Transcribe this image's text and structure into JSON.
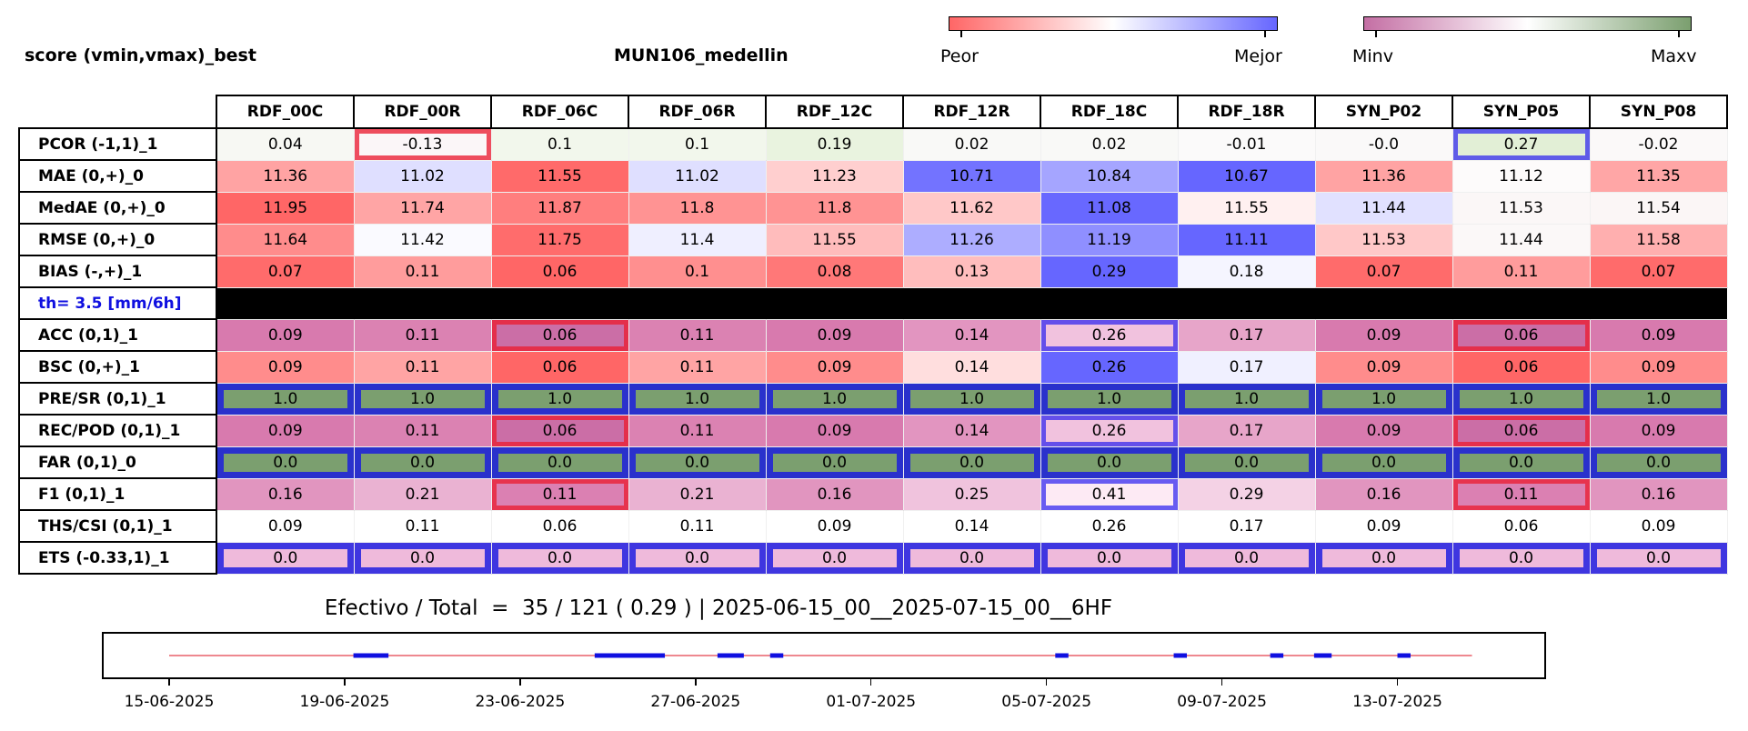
{
  "header": {
    "left_title": "score (vmin,vmax)_best",
    "center_title": "MUN106_medellin"
  },
  "colorbars": {
    "primary": {
      "low_label": "Peor",
      "high_label": "Mejor",
      "colors": [
        "#ff6666",
        "#ffffff",
        "#6666ff"
      ]
    },
    "secondary": {
      "low_label": "Minv",
      "high_label": "Maxv",
      "colors": [
        "#c46fa4",
        "#ffffff",
        "#7b9f6f"
      ]
    }
  },
  "chart_data": {
    "type": "heatmap",
    "columns": [
      "RDF_00C",
      "RDF_00R",
      "RDF_06C",
      "RDF_06R",
      "RDF_12C",
      "RDF_12R",
      "RDF_18C",
      "RDF_18R",
      "SYN_P02",
      "SYN_P05",
      "SYN_P08"
    ],
    "rows": [
      {
        "label": "PCOR (-1,1)_1",
        "values": [
          "0.04",
          "-0.13",
          "0.1",
          "0.1",
          "0.19",
          "0.02",
          "0.02",
          "-0.01",
          "-0.0",
          "0.27",
          "-0.02"
        ],
        "colors": [
          "#f7f8f3",
          "#fbf6f8",
          "#f2f7ec",
          "#f2f7ec",
          "#e9f3df",
          "#f9f9f7",
          "#f9f9f7",
          "#fbfafa",
          "#faf9f9",
          "#e2efd6",
          "#fbf9f9"
        ],
        "highlights": [
          "",
          "red",
          "",
          "",
          "",
          "",
          "",
          "",
          "",
          "blue",
          ""
        ]
      },
      {
        "label": "MAE (0,+)_0",
        "values": [
          "11.36",
          "11.02",
          "11.55",
          "11.02",
          "11.23",
          "10.71",
          "10.84",
          "10.67",
          "11.36",
          "11.12",
          "11.35"
        ],
        "colors": [
          "#ffa3a3",
          "#dfdfff",
          "#ff6a6a",
          "#dfdfff",
          "#ffcfcf",
          "#7373ff",
          "#a5a5ff",
          "#6666ff",
          "#ffa3a3",
          "#fdfbfb",
          "#ffa6a6"
        ],
        "highlights": [
          "",
          "",
          "",
          "",
          "",
          "",
          "",
          "",
          "",
          "",
          ""
        ]
      },
      {
        "label": "MedAE (0,+)_0",
        "values": [
          "11.95",
          "11.74",
          "11.87",
          "11.8",
          "11.8",
          "11.62",
          "11.08",
          "11.55",
          "11.44",
          "11.53",
          "11.54"
        ],
        "colors": [
          "#ff6666",
          "#ffa5a5",
          "#ff7e7e",
          "#ff9393",
          "#ff9393",
          "#ffc8c8",
          "#6868ff",
          "#fff0f0",
          "#e1e1ff",
          "#fbf7f7",
          "#fbf6f6"
        ],
        "highlights": [
          "",
          "",
          "",
          "",
          "",
          "",
          "",
          "",
          "",
          "",
          ""
        ]
      },
      {
        "label": "RMSE (0,+)_0",
        "values": [
          "11.64",
          "11.42",
          "11.75",
          "11.4",
          "11.55",
          "11.26",
          "11.19",
          "11.11",
          "11.53",
          "11.44",
          "11.58"
        ],
        "colors": [
          "#ff8c8c",
          "#fafaff",
          "#ff6c6c",
          "#efefff",
          "#ffbcbc",
          "#adadff",
          "#8f8fff",
          "#6666ff",
          "#ffc8c8",
          "#fbf8f8",
          "#ffafaf"
        ],
        "highlights": [
          "",
          "",
          "",
          "",
          "",
          "",
          "",
          "",
          "",
          "",
          ""
        ]
      },
      {
        "label": "BIAS (-,+)_1",
        "values": [
          "0.07",
          "0.11",
          "0.06",
          "0.1",
          "0.08",
          "0.13",
          "0.29",
          "0.18",
          "0.07",
          "0.11",
          "0.07"
        ],
        "colors": [
          "#ff6b6b",
          "#ff9c9c",
          "#ff6666",
          "#ff8f8f",
          "#ff7878",
          "#ffbdbd",
          "#6666ff",
          "#f5f5ff",
          "#ff6b6b",
          "#ff9c9c",
          "#ff6b6b"
        ],
        "highlights": [
          "",
          "",
          "",
          "",
          "",
          "",
          "",
          "",
          "",
          "",
          ""
        ]
      },
      {
        "label": "th= 3.5 [mm/6h]",
        "separator": true
      },
      {
        "label": "ACC (0,1)_1",
        "values": [
          "0.09",
          "0.11",
          "0.06",
          "0.11",
          "0.09",
          "0.14",
          "0.26",
          "0.17",
          "0.09",
          "0.06",
          "0.09"
        ],
        "colors": [
          "#d87aae",
          "#db82b2",
          "#cb6ea6",
          "#db82b2",
          "#d87aae",
          "#e295c0",
          "#f1c2de",
          "#e7a5c9",
          "#d87aae",
          "#cb6ea6",
          "#d87aae"
        ],
        "highlights": [
          "",
          "",
          "red",
          "",
          "",
          "",
          "blue",
          "",
          "",
          "red",
          ""
        ]
      },
      {
        "label": "BSC (0,+)_1",
        "values": [
          "0.09",
          "0.11",
          "0.06",
          "0.11",
          "0.09",
          "0.14",
          "0.26",
          "0.17",
          "0.09",
          "0.06",
          "0.09"
        ],
        "colors": [
          "#ff8c8c",
          "#ffa4a4",
          "#ff6666",
          "#ffa4a4",
          "#ff8c8c",
          "#ffdede",
          "#6666ff",
          "#f0f0ff",
          "#ff8c8c",
          "#ff6666",
          "#ff8c8c"
        ],
        "highlights": [
          "",
          "",
          "",
          "",
          "",
          "",
          "",
          "",
          "",
          "",
          ""
        ]
      },
      {
        "label": "PRE/SR (0,1)_1",
        "values": [
          "1.0",
          "1.0",
          "1.0",
          "1.0",
          "1.0",
          "1.0",
          "1.0",
          "1.0",
          "1.0",
          "1.0",
          "1.0"
        ],
        "colors": [
          "#7b9f6f",
          "#7b9f6f",
          "#7b9f6f",
          "#7b9f6f",
          "#7b9f6f",
          "#7b9f6f",
          "#7b9f6f",
          "#7b9f6f",
          "#7b9f6f",
          "#7b9f6f",
          "#7b9f6f"
        ],
        "highlights": [
          "bluethick",
          "bluethick",
          "bluethick",
          "bluethick",
          "bluethick",
          "bluethick",
          "bluethick",
          "bluethick",
          "bluethick",
          "bluethick",
          "bluethick"
        ]
      },
      {
        "label": "REC/POD (0,1)_1",
        "values": [
          "0.09",
          "0.11",
          "0.06",
          "0.11",
          "0.09",
          "0.14",
          "0.26",
          "0.17",
          "0.09",
          "0.06",
          "0.09"
        ],
        "colors": [
          "#d87aae",
          "#db82b2",
          "#cb6ea6",
          "#db82b2",
          "#d87aae",
          "#e295c0",
          "#f1c2de",
          "#e7a5c9",
          "#d87aae",
          "#cb6ea6",
          "#d87aae"
        ],
        "highlights": [
          "",
          "",
          "red",
          "",
          "",
          "",
          "blue",
          "",
          "",
          "red",
          ""
        ]
      },
      {
        "label": "FAR (0,1)_0",
        "values": [
          "0.0",
          "0.0",
          "0.0",
          "0.0",
          "0.0",
          "0.0",
          "0.0",
          "0.0",
          "0.0",
          "0.0",
          "0.0"
        ],
        "colors": [
          "#7b9f6f",
          "#7b9f6f",
          "#7b9f6f",
          "#7b9f6f",
          "#7b9f6f",
          "#7b9f6f",
          "#7b9f6f",
          "#7b9f6f",
          "#7b9f6f",
          "#7b9f6f",
          "#7b9f6f"
        ],
        "highlights": [
          "bluethick",
          "bluethick",
          "bluethick",
          "bluethick",
          "bluethick",
          "bluethick",
          "bluethick",
          "bluethick",
          "bluethick",
          "bluethick",
          "bluethick"
        ]
      },
      {
        "label": "F1 (0,1)_1",
        "values": [
          "0.16",
          "0.21",
          "0.11",
          "0.21",
          "0.16",
          "0.25",
          "0.41",
          "0.29",
          "0.16",
          "0.11",
          "0.16"
        ],
        "colors": [
          "#e195bf",
          "#eab2d2",
          "#db80b2",
          "#eab2d2",
          "#e195bf",
          "#f0c3dd",
          "#fdeaf4",
          "#f4d2e5",
          "#e195bf",
          "#db80b2",
          "#e195bf"
        ],
        "highlights": [
          "",
          "",
          "red",
          "",
          "",
          "",
          "blue",
          "",
          "",
          "red",
          ""
        ]
      },
      {
        "label": "THS/CSI (0,1)_1",
        "values": [
          "0.09",
          "0.11",
          "0.06",
          "0.11",
          "0.09",
          "0.14",
          "0.26",
          "0.17",
          "0.09",
          "0.06",
          "0.09"
        ],
        "colors": [
          "#ffffff",
          "#ffffff",
          "#ffffff",
          "#ffffff",
          "#ffffff",
          "#ffffff",
          "#ffffff",
          "#ffffff",
          "#ffffff",
          "#ffffff",
          "#ffffff"
        ],
        "highlights": [
          "",
          "",
          "",
          "",
          "",
          "",
          "",
          "",
          "",
          "",
          ""
        ]
      },
      {
        "label": "ETS (-0.33,1)_1",
        "values": [
          "0.0",
          "0.0",
          "0.0",
          "0.0",
          "0.0",
          "0.0",
          "0.0",
          "0.0",
          "0.0",
          "0.0",
          "0.0"
        ],
        "colors": [
          "#efbadb",
          "#efbadb",
          "#efbadb",
          "#efbadb",
          "#efbadb",
          "#efbadb",
          "#efbadb",
          "#efbadb",
          "#efbadb",
          "#efbadb",
          "#efbadb"
        ],
        "highlights": [
          "bluethick",
          "bluethick",
          "bluethick",
          "bluethick",
          "bluethick",
          "bluethick",
          "bluethick",
          "bluethick",
          "bluethick",
          "bluethick",
          "bluethick"
        ]
      }
    ]
  },
  "timeline": {
    "title": "Efectivo / Total  =  35 / 121 ( 0.29 ) | 2025-06-15_00__2025-07-15_00__6HF",
    "start": "2025-06-15",
    "end": "2025-07-15",
    "line_color": "#e8606a",
    "segment_color": "#1010e0",
    "tick_labels": [
      "15-06-2025",
      "19-06-2025",
      "23-06-2025",
      "27-06-2025",
      "01-07-2025",
      "05-07-2025",
      "09-07-2025",
      "13-07-2025"
    ],
    "tick_days": [
      0,
      4,
      8,
      12,
      16,
      20,
      24,
      28
    ],
    "segments_days": [
      [
        4.2,
        5.0
      ],
      [
        9.7,
        11.3
      ],
      [
        12.5,
        13.1
      ],
      [
        13.7,
        14.0
      ],
      [
        20.2,
        20.5
      ],
      [
        22.9,
        23.2
      ],
      [
        25.1,
        25.4
      ],
      [
        26.1,
        26.5
      ],
      [
        28.0,
        28.3
      ]
    ]
  }
}
